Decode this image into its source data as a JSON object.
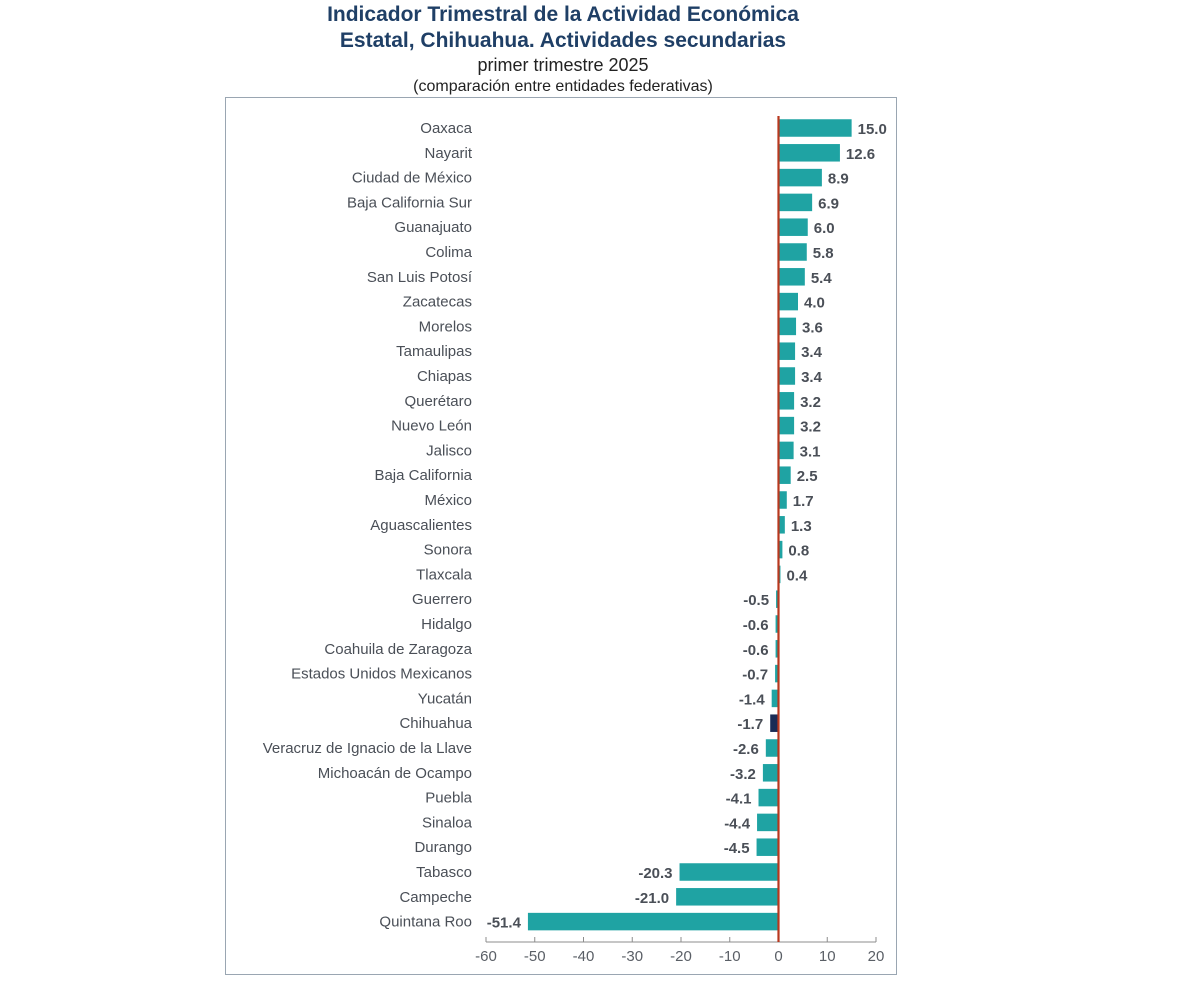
{
  "chart_data": {
    "type": "bar",
    "orientation": "horizontal",
    "title": "Indicador Trimestral de la Actividad Económica Estatal, Chihuahua. Actividades secundarias",
    "title_lines": [
      "Indicador Trimestral de la Actividad Económica",
      "Estatal, Chihuahua. Actividades secundarias"
    ],
    "subtitle": "primer trimestre 2025",
    "subtitle2": "(comparación entre entidades federativas)",
    "xlabel": "",
    "ylabel": "",
    "xlim": [
      -60,
      20
    ],
    "xticks": [
      -60,
      -50,
      -40,
      -30,
      -20,
      -10,
      0,
      10,
      20
    ],
    "grid": false,
    "legend": "none",
    "colors": {
      "default": "#1fa3a3",
      "highlight": "#1a2b55",
      "zero_line": "#b8381e",
      "axis": "#8c8c8c"
    },
    "highlight_category": "Chihuahua",
    "categories": [
      "Oaxaca",
      "Nayarit",
      "Ciudad de México",
      "Baja California Sur",
      "Guanajuato",
      "Colima",
      "San Luis Potosí",
      "Zacatecas",
      "Morelos",
      "Tamaulipas",
      "Chiapas",
      "Querétaro",
      "Nuevo León",
      "Jalisco",
      "Baja California",
      "México",
      "Aguascalientes",
      "Sonora",
      "Tlaxcala",
      "Guerrero",
      "Hidalgo",
      "Coahuila de Zaragoza",
      "Estados Unidos Mexicanos",
      "Yucatán",
      "Chihuahua",
      "Veracruz de Ignacio de la Llave",
      "Michoacán de Ocampo",
      "Puebla",
      "Sinaloa",
      "Durango",
      "Tabasco",
      "Campeche",
      "Quintana Roo"
    ],
    "values": [
      15.0,
      12.6,
      8.9,
      6.9,
      6.0,
      5.8,
      5.4,
      4.0,
      3.6,
      3.4,
      3.4,
      3.2,
      3.2,
      3.1,
      2.5,
      1.7,
      1.3,
      0.8,
      0.4,
      -0.5,
      -0.6,
      -0.6,
      -0.7,
      -1.4,
      -1.7,
      -2.6,
      -3.2,
      -4.1,
      -4.4,
      -4.5,
      -20.3,
      -21.0,
      -51.4
    ]
  }
}
